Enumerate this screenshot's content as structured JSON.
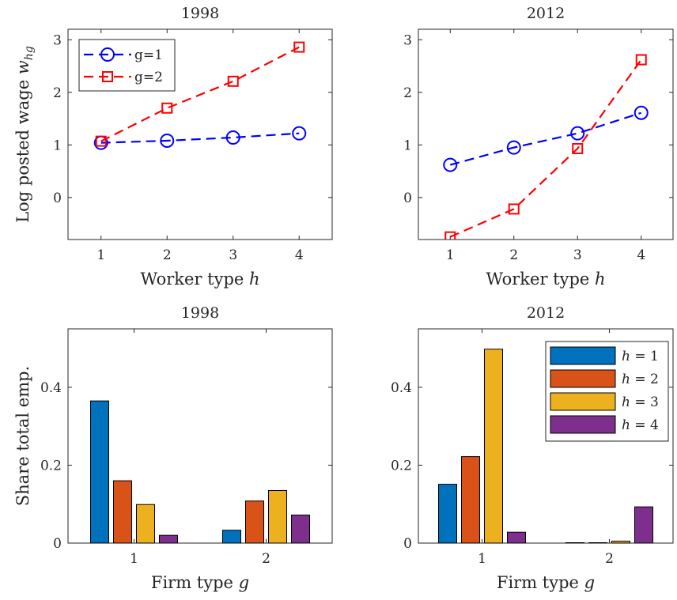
{
  "chart_data": [
    {
      "type": "line",
      "title": "1998",
      "xlabel": "Worker type h",
      "ylabel": "Log posted wage w_hg",
      "x": [
        1,
        2,
        3,
        4
      ],
      "xticks": [
        "1",
        "2",
        "3",
        "4"
      ],
      "xlim": [
        0.5,
        4.5
      ],
      "yticks": [
        "0",
        "1",
        "2",
        "3"
      ],
      "ylim": [
        -0.8,
        3.2
      ],
      "legend": "top-left",
      "series": [
        {
          "name": "g=1",
          "values": [
            1.04,
            1.08,
            1.14,
            1.22
          ],
          "color": "#0000ff",
          "marker": "circle"
        },
        {
          "name": "g=2",
          "values": [
            1.07,
            1.7,
            2.21,
            2.86
          ],
          "color": "#ff0000",
          "marker": "square"
        }
      ]
    },
    {
      "type": "line",
      "title": "2012",
      "xlabel": "Worker type h",
      "ylabel": "",
      "x": [
        1,
        2,
        3,
        4
      ],
      "xticks": [
        "1",
        "2",
        "3",
        "4"
      ],
      "xlim": [
        0.5,
        4.5
      ],
      "yticks": [
        "0",
        "1",
        "2",
        "3"
      ],
      "ylim": [
        -0.8,
        3.2
      ],
      "series": [
        {
          "values": [
            0.62,
            0.95,
            1.22,
            1.61
          ],
          "color": "#0000ff",
          "marker": "circle"
        },
        {
          "values": [
            -0.75,
            -0.22,
            0.93,
            2.62
          ],
          "color": "#ff0000",
          "marker": "square"
        }
      ]
    },
    {
      "type": "bar",
      "title": "1998",
      "xlabel": "Firm type g",
      "ylabel": "Share total emp.",
      "categories": [
        "1",
        "2"
      ],
      "yticks": [
        "0",
        "0.2",
        "0.4"
      ],
      "ylim": [
        0,
        0.55
      ],
      "series": [
        {
          "values": [
            0.365,
            0.033
          ],
          "color": "#0072bd"
        },
        {
          "values": [
            0.16,
            0.108
          ],
          "color": "#d95319"
        },
        {
          "values": [
            0.099,
            0.135
          ],
          "color": "#edb120"
        },
        {
          "values": [
            0.02,
            0.072
          ],
          "color": "#7e2f8e"
        }
      ]
    },
    {
      "type": "bar",
      "title": "2012",
      "xlabel": "Firm type g",
      "ylabel": "",
      "categories": [
        "1",
        "2"
      ],
      "yticks": [
        "0",
        "0.2",
        "0.4"
      ],
      "ylim": [
        0,
        0.55
      ],
      "legend": "top-right",
      "series": [
        {
          "name": "h = 1",
          "values": [
            0.151,
            0.001
          ],
          "color": "#0072bd"
        },
        {
          "name": "h = 2",
          "values": [
            0.222,
            0.001
          ],
          "color": "#d95319"
        },
        {
          "name": "h = 3",
          "values": [
            0.498,
            0.005
          ],
          "color": "#edb120"
        },
        {
          "name": "h = 4",
          "values": [
            0.028,
            0.093
          ],
          "color": "#7e2f8e"
        }
      ]
    }
  ]
}
